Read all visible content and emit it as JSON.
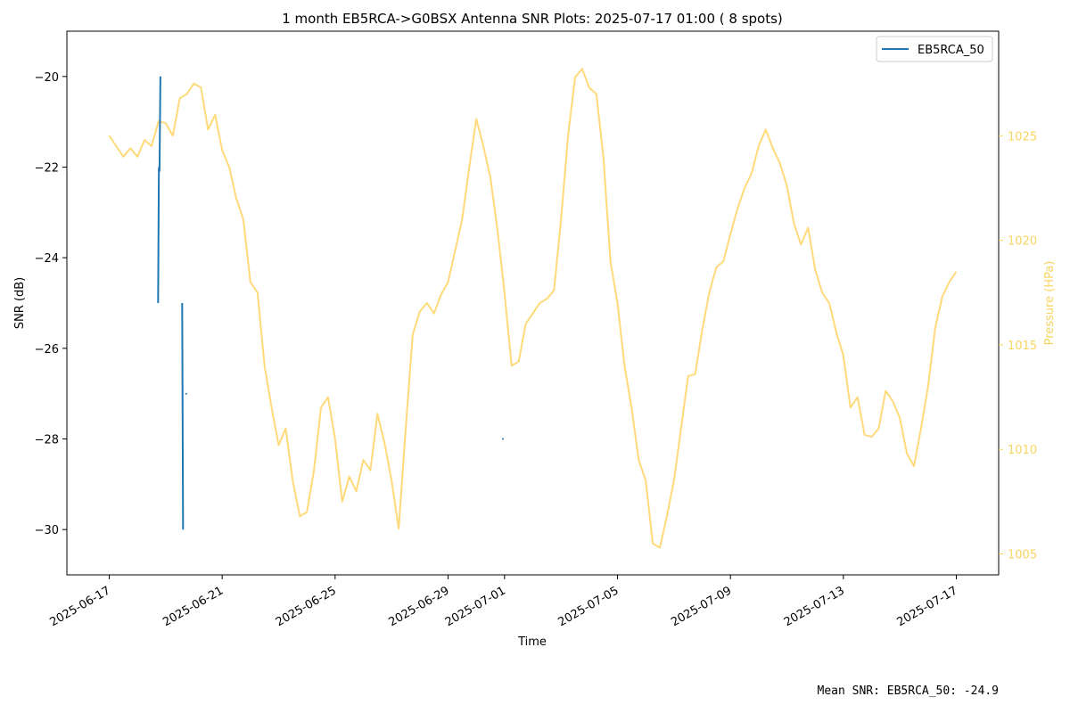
{
  "chart_data": {
    "type": "line",
    "title": "1 month EB5RCA->G0BSX Antenna SNR Plots: 2025-07-17 01:00  ( 8 spots)",
    "xlabel": "Time",
    "ylabel": "SNR (dB)",
    "y2label": "Pressure (HPa)",
    "xlim": [
      "2025-06-15T12:00",
      "2025-07-18T12:00"
    ],
    "ylim": [
      -31,
      -19
    ],
    "y2lim": [
      1004,
      1030
    ],
    "x_ticks": [
      "2025-06-17",
      "2025-06-21",
      "2025-06-25",
      "2025-06-29",
      "2025-07-01",
      "2025-07-05",
      "2025-07-09",
      "2025-07-13",
      "2025-07-17"
    ],
    "y_ticks": [
      -30,
      -28,
      -26,
      -24,
      -22,
      -20
    ],
    "y2_ticks": [
      1005,
      1010,
      1015,
      1020,
      1025
    ],
    "legend": {
      "position": "top-right",
      "entries": [
        "EB5RCA_50"
      ]
    },
    "series": [
      {
        "name": "EB5RCA_50",
        "axis": "left",
        "color": "#1f77b4",
        "segments": [
          [
            [
              "2025-06-18T17:30",
              -25.0
            ],
            [
              "2025-06-18T18:15",
              -22.0
            ],
            [
              "2025-06-18T18:45",
              -22.1
            ],
            [
              "2025-06-18T19:30",
              -20.0
            ]
          ],
          [
            [
              "2025-06-19T14:00",
              -25.0
            ],
            [
              "2025-06-19T14:45",
              -30.0
            ]
          ]
        ],
        "points": [
          [
            "2025-06-19T17:30",
            -27.0
          ],
          [
            "2025-06-30T22:30",
            -28.0
          ]
        ]
      },
      {
        "name": "pressure",
        "axis": "right",
        "color": "#ffda7a",
        "points": [
          [
            "2025-06-17T00:00",
            1025.0
          ],
          [
            "2025-06-17T06:00",
            1024.5
          ],
          [
            "2025-06-17T12:00",
            1024.0
          ],
          [
            "2025-06-17T18:00",
            1024.4
          ],
          [
            "2025-06-18T00:00",
            1024.0
          ],
          [
            "2025-06-18T06:00",
            1024.8
          ],
          [
            "2025-06-18T12:00",
            1024.5
          ],
          [
            "2025-06-18T18:00",
            1025.7
          ],
          [
            "2025-06-19T00:00",
            1025.6
          ],
          [
            "2025-06-19T06:00",
            1025.0
          ],
          [
            "2025-06-19T12:00",
            1026.8
          ],
          [
            "2025-06-19T18:00",
            1027.0
          ],
          [
            "2025-06-20T00:00",
            1027.5
          ],
          [
            "2025-06-20T06:00",
            1027.3
          ],
          [
            "2025-06-20T12:00",
            1025.3
          ],
          [
            "2025-06-20T18:00",
            1026.0
          ],
          [
            "2025-06-21T00:00",
            1024.3
          ],
          [
            "2025-06-21T06:00",
            1023.5
          ],
          [
            "2025-06-21T12:00",
            1022.0
          ],
          [
            "2025-06-21T18:00",
            1021.0
          ],
          [
            "2025-06-22T00:00",
            1018.0
          ],
          [
            "2025-06-22T06:00",
            1017.5
          ],
          [
            "2025-06-22T12:00",
            1014.0
          ],
          [
            "2025-06-22T18:00",
            1012.0
          ],
          [
            "2025-06-23T00:00",
            1010.2
          ],
          [
            "2025-06-23T06:00",
            1011.0
          ],
          [
            "2025-06-23T12:00",
            1008.5
          ],
          [
            "2025-06-23T18:00",
            1006.8
          ],
          [
            "2025-06-24T00:00",
            1007.0
          ],
          [
            "2025-06-24T06:00",
            1009.0
          ],
          [
            "2025-06-24T12:00",
            1012.0
          ],
          [
            "2025-06-24T18:00",
            1012.5
          ],
          [
            "2025-06-25T00:00",
            1010.5
          ],
          [
            "2025-06-25T06:00",
            1007.5
          ],
          [
            "2025-06-25T12:00",
            1008.7
          ],
          [
            "2025-06-25T18:00",
            1008.0
          ],
          [
            "2025-06-26T00:00",
            1009.5
          ],
          [
            "2025-06-26T06:00",
            1009.0
          ],
          [
            "2025-06-26T12:00",
            1011.7
          ],
          [
            "2025-06-26T18:00",
            1010.3
          ],
          [
            "2025-06-27T00:00",
            1008.5
          ],
          [
            "2025-06-27T06:00",
            1006.2
          ],
          [
            "2025-06-27T12:00",
            1011.0
          ],
          [
            "2025-06-27T18:00",
            1015.5
          ],
          [
            "2025-06-28T00:00",
            1016.6
          ],
          [
            "2025-06-28T06:00",
            1017.0
          ],
          [
            "2025-06-28T12:00",
            1016.5
          ],
          [
            "2025-06-28T18:00",
            1017.4
          ],
          [
            "2025-06-29T00:00",
            1018.0
          ],
          [
            "2025-06-29T06:00",
            1019.5
          ],
          [
            "2025-06-29T12:00",
            1021.0
          ],
          [
            "2025-06-29T18:00",
            1023.5
          ],
          [
            "2025-06-30T00:00",
            1025.8
          ],
          [
            "2025-06-30T06:00",
            1024.5
          ],
          [
            "2025-06-30T12:00",
            1023.0
          ],
          [
            "2025-06-30T18:00",
            1020.5
          ],
          [
            "2025-07-01T00:00",
            1017.5
          ],
          [
            "2025-07-01T06:00",
            1014.0
          ],
          [
            "2025-07-01T12:00",
            1014.2
          ],
          [
            "2025-07-01T18:00",
            1016.0
          ],
          [
            "2025-07-02T00:00",
            1016.5
          ],
          [
            "2025-07-02T06:00",
            1017.0
          ],
          [
            "2025-07-02T12:00",
            1017.2
          ],
          [
            "2025-07-02T18:00",
            1017.6
          ],
          [
            "2025-07-03T00:00",
            1021.0
          ],
          [
            "2025-07-03T06:00",
            1025.0
          ],
          [
            "2025-07-03T12:00",
            1027.8
          ],
          [
            "2025-07-03T18:00",
            1028.2
          ],
          [
            "2025-07-04T00:00",
            1027.3
          ],
          [
            "2025-07-04T06:00",
            1027.0
          ],
          [
            "2025-07-04T12:00",
            1024.0
          ],
          [
            "2025-07-04T18:00",
            1019.0
          ],
          [
            "2025-07-05T00:00",
            1017.0
          ],
          [
            "2025-07-05T06:00",
            1014.0
          ],
          [
            "2025-07-05T12:00",
            1012.0
          ],
          [
            "2025-07-05T18:00",
            1009.5
          ],
          [
            "2025-07-06T00:00",
            1008.5
          ],
          [
            "2025-07-06T06:00",
            1005.5
          ],
          [
            "2025-07-06T12:00",
            1005.3
          ],
          [
            "2025-07-06T18:00",
            1006.8
          ],
          [
            "2025-07-07T00:00",
            1008.5
          ],
          [
            "2025-07-07T06:00",
            1011.0
          ],
          [
            "2025-07-07T12:00",
            1013.5
          ],
          [
            "2025-07-07T18:00",
            1013.6
          ],
          [
            "2025-07-08T00:00",
            1015.7
          ],
          [
            "2025-07-08T06:00",
            1017.5
          ],
          [
            "2025-07-08T12:00",
            1018.7
          ],
          [
            "2025-07-08T18:00",
            1019.0
          ],
          [
            "2025-07-09T00:00",
            1020.3
          ],
          [
            "2025-07-09T06:00",
            1021.5
          ],
          [
            "2025-07-09T12:00",
            1022.5
          ],
          [
            "2025-07-09T18:00",
            1023.2
          ],
          [
            "2025-07-10T00:00",
            1024.5
          ],
          [
            "2025-07-10T06:00",
            1025.3
          ],
          [
            "2025-07-10T12:00",
            1024.4
          ],
          [
            "2025-07-10T18:00",
            1023.7
          ],
          [
            "2025-07-11T00:00",
            1022.6
          ],
          [
            "2025-07-11T06:00",
            1020.8
          ],
          [
            "2025-07-11T12:00",
            1019.8
          ],
          [
            "2025-07-11T18:00",
            1020.6
          ],
          [
            "2025-07-12T00:00",
            1018.6
          ],
          [
            "2025-07-12T06:00",
            1017.5
          ],
          [
            "2025-07-12T12:00",
            1017.0
          ],
          [
            "2025-07-12T18:00",
            1015.6
          ],
          [
            "2025-07-13T00:00",
            1014.5
          ],
          [
            "2025-07-13T06:00",
            1012.0
          ],
          [
            "2025-07-13T12:00",
            1012.5
          ],
          [
            "2025-07-13T18:00",
            1010.7
          ],
          [
            "2025-07-14T00:00",
            1010.6
          ],
          [
            "2025-07-14T06:00",
            1011.0
          ],
          [
            "2025-07-14T12:00",
            1012.8
          ],
          [
            "2025-07-14T18:00",
            1012.3
          ],
          [
            "2025-07-15T00:00",
            1011.5
          ],
          [
            "2025-07-15T06:00",
            1009.8
          ],
          [
            "2025-07-15T12:00",
            1009.2
          ],
          [
            "2025-07-15T18:00",
            1011.0
          ],
          [
            "2025-07-16T00:00",
            1013.0
          ],
          [
            "2025-07-16T06:00",
            1015.8
          ],
          [
            "2025-07-16T12:00",
            1017.3
          ],
          [
            "2025-07-16T18:00",
            1018.0
          ],
          [
            "2025-07-17T00:00",
            1018.5
          ]
        ]
      }
    ]
  },
  "footer": {
    "mean_snr": "Mean SNR: EB5RCA_50: -24.9"
  },
  "colors": {
    "snr": "#1f77b4",
    "pressure_line": "#ffda7a",
    "pressure_axis": "#f7d560"
  }
}
